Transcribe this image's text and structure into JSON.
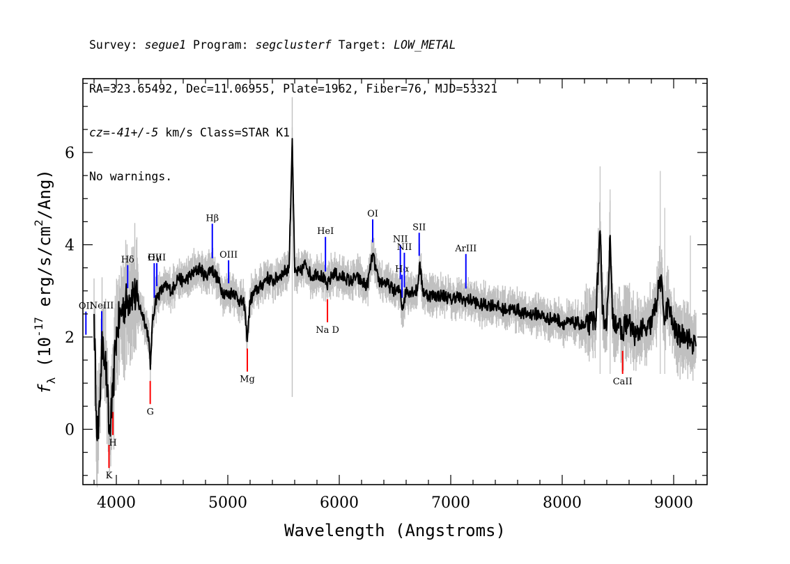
{
  "header": {
    "line1": {
      "survey_label": "Survey: ",
      "survey": "segue1",
      "program_label": " Program: ",
      "program": "segclusterf",
      "target_label": " Target: ",
      "target": "LOW_METAL"
    },
    "line2": "RA=323.65492, Dec=11.06955, Plate=1962, Fiber=76, MJD=53321",
    "line3": {
      "cz_label": "cz=",
      "cz": "-41+/-5",
      "cz_units": " km/s Class=STAR K1"
    },
    "line4": "No warnings."
  },
  "chart_data": {
    "type": "line",
    "xlabel": "Wavelength (Angstroms)",
    "ylabel": "f_λ (10^-17 erg/s/cm^2/Ang)",
    "xlim": [
      3700,
      9300
    ],
    "ylim": [
      -1.2,
      7.6
    ],
    "x_ticks": [
      4000,
      5000,
      6000,
      7000,
      8000,
      9000
    ],
    "y_ticks": [
      0,
      2,
      4,
      6
    ],
    "grid": false,
    "series": [
      {
        "role": "spectrum-flux",
        "color": "#000000",
        "x": [
          3800,
          3820,
          3840,
          3860,
          3880,
          3900,
          3920,
          3935,
          3950,
          3970,
          3990,
          4010,
          4050,
          4100,
          4150,
          4200,
          4250,
          4290,
          4305,
          4320,
          4350,
          4400,
          4450,
          4500,
          4550,
          4600,
          4650,
          4700,
          4750,
          4800,
          4850,
          4900,
          4950,
          5000,
          5050,
          5100,
          5150,
          5170,
          5180,
          5200,
          5250,
          5300,
          5350,
          5400,
          5450,
          5500,
          5550,
          5578,
          5600,
          5650,
          5700,
          5750,
          5800,
          5850,
          5890,
          5950,
          6000,
          6050,
          6100,
          6150,
          6200,
          6250,
          6300,
          6350,
          6400,
          6450,
          6500,
          6550,
          6563,
          6600,
          6650,
          6700,
          6720,
          6750,
          6800,
          6850,
          6900,
          6950,
          7000,
          7050,
          7100,
          7150,
          7200,
          7250,
          7300,
          7350,
          7400,
          7450,
          7500,
          7550,
          7600,
          7650,
          7700,
          7750,
          7800,
          7850,
          7900,
          7950,
          8000,
          8050,
          8100,
          8150,
          8200,
          8250,
          8300,
          8340,
          8360,
          8400,
          8430,
          8450,
          8500,
          8542,
          8560,
          8600,
          8662,
          8700,
          8750,
          8800,
          8850,
          8880,
          8920,
          8950,
          9000,
          9050,
          9100,
          9150,
          9200
        ],
        "y": [
          2.5,
          0.4,
          -0.2,
          1.2,
          2.0,
          1.5,
          0.8,
          -0.1,
          0.2,
          0.7,
          1.8,
          2.2,
          2.6,
          2.8,
          3.0,
          2.7,
          2.4,
          2.0,
          1.3,
          2.2,
          2.8,
          3.0,
          3.1,
          3.0,
          3.3,
          3.2,
          3.3,
          3.4,
          3.5,
          3.3,
          3.5,
          3.3,
          3.0,
          2.9,
          3.0,
          2.8,
          2.7,
          2.0,
          2.1,
          2.8,
          3.0,
          3.1,
          3.3,
          3.2,
          3.3,
          3.4,
          3.5,
          6.3,
          3.4,
          3.4,
          3.6,
          3.3,
          3.4,
          3.3,
          3.1,
          3.4,
          3.3,
          3.3,
          3.2,
          3.3,
          3.2,
          3.1,
          3.8,
          3.2,
          3.2,
          3.1,
          3.0,
          3.0,
          2.6,
          3.0,
          3.0,
          3.0,
          3.6,
          3.0,
          2.9,
          2.9,
          2.9,
          2.9,
          2.8,
          2.9,
          2.8,
          2.8,
          2.8,
          2.7,
          2.7,
          2.7,
          2.7,
          2.6,
          2.6,
          2.6,
          2.6,
          2.5,
          2.5,
          2.5,
          2.5,
          2.4,
          2.4,
          2.4,
          2.3,
          2.3,
          2.3,
          2.3,
          2.2,
          2.3,
          2.4,
          4.3,
          2.5,
          2.3,
          4.2,
          2.4,
          2.3,
          2.0,
          2.3,
          2.3,
          2.0,
          2.2,
          2.1,
          2.3,
          2.8,
          3.3,
          2.4,
          2.7,
          2.2,
          2.0,
          2.1,
          1.9,
          1.8
        ]
      }
    ],
    "emission_lines": [
      {
        "label": "OII",
        "x": 3727
      },
      {
        "label": "NeIII",
        "x": 3869
      },
      {
        "label": "Hδ",
        "x": 4102
      },
      {
        "label": "Hγ",
        "x": 4340
      },
      {
        "label": "OIII",
        "x": 4363
      },
      {
        "label": "Hβ",
        "x": 4861
      },
      {
        "label": "OIII",
        "x": 5007
      },
      {
        "label": "HeI",
        "x": 5876
      },
      {
        "label": "OI",
        "x": 6300
      },
      {
        "label": "NII",
        "x": 6548
      },
      {
        "label": "Hα",
        "x": 6563
      },
      {
        "label": "NII",
        "x": 6584
      },
      {
        "label": "SII",
        "x": 6717
      },
      {
        "label": "ArIII",
        "x": 7136
      }
    ],
    "absorption_lines": [
      {
        "label": "K",
        "x": 3934
      },
      {
        "label": "H",
        "x": 3969
      },
      {
        "label": "G",
        "x": 4304
      },
      {
        "label": "Mg",
        "x": 5175
      },
      {
        "label": "Na D",
        "x": 5894
      },
      {
        "label": "CaII",
        "x": 8542
      }
    ],
    "colors": {
      "flux": "#000000",
      "noise_band": "#c0c0c0",
      "emission": "#0000ff",
      "absorption": "#ff0000"
    }
  }
}
